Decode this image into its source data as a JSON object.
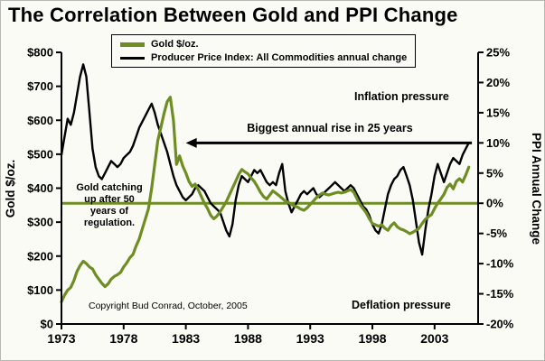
{
  "chart_data": {
    "type": "line",
    "title": "The Correlation Between Gold and PPI Change",
    "x_axis": {
      "range": [
        1973,
        2006.5
      ],
      "ticks": [
        1973,
        1978,
        1983,
        1988,
        1993,
        1998,
        2003
      ],
      "tick_labels": [
        "1973",
        "1978",
        "1983",
        "1988",
        "1993",
        "1998",
        "2003"
      ]
    },
    "left_axis": {
      "label": "Gold $/oz.",
      "range": [
        0,
        800
      ],
      "tick_values": [
        0,
        100,
        200,
        300,
        400,
        500,
        600,
        700,
        800
      ],
      "tick_labels": [
        "$0",
        "$100",
        "$200",
        "$300",
        "$400",
        "$500",
        "$600",
        "$700",
        "$800"
      ]
    },
    "right_axis": {
      "label": "PPI Annual Change",
      "range": [
        -20,
        25
      ],
      "tick_values": [
        -20,
        -15,
        -10,
        -5,
        0,
        5,
        10,
        15,
        20,
        25
      ],
      "tick_labels": [
        "-20%",
        "-15%",
        "-10%",
        "-5%",
        "0%",
        "5%",
        "10%",
        "15%",
        "20%",
        "25%"
      ]
    },
    "zero_line": {
      "axis": "right",
      "value": 0,
      "color": "#6e8e23"
    },
    "grid": false,
    "legend_position": "top-inside",
    "series": [
      {
        "name": "Gold $/oz.",
        "axis": "left",
        "color": "#6e8e23",
        "stroke_width": 3.2,
        "x_start": 1973,
        "x_step": 0.25,
        "values": [
          65,
          85,
          100,
          108,
          128,
          155,
          172,
          185,
          178,
          168,
          162,
          145,
          132,
          120,
          110,
          118,
          132,
          140,
          145,
          152,
          168,
          180,
          195,
          205,
          230,
          250,
          280,
          310,
          340,
          400,
          470,
          540,
          580,
          620,
          655,
          668,
          600,
          470,
          495,
          465,
          445,
          420,
          405,
          412,
          395,
          375,
          355,
          340,
          320,
          310,
          318,
          330,
          345,
          360,
          380,
          400,
          420,
          440,
          455,
          448,
          442,
          430,
          420,
          405,
          388,
          375,
          368,
          380,
          392,
          385,
          378,
          370,
          362,
          358,
          352,
          348,
          344,
          338,
          335,
          342,
          352,
          362,
          372,
          380,
          386,
          382,
          380,
          383,
          386,
          388,
          386,
          388,
          392,
          396,
          388,
          370,
          352,
          340,
          328,
          310,
          296,
          292,
          288,
          292,
          282,
          276,
          290,
          298,
          286,
          280,
          277,
          272,
          266,
          270,
          276,
          282,
          296,
          308,
          316,
          322,
          340,
          356,
          368,
          382,
          402,
          412,
          398,
          420,
          428,
          418,
          438,
          462
        ]
      },
      {
        "name": "Producer Price Index: All Commodities annual change",
        "axis": "right",
        "color": "#000000",
        "stroke_width": 2.4,
        "x_start": 1973,
        "x_step": 0.25,
        "values": [
          8,
          11,
          14,
          13,
          15,
          18,
          21,
          23,
          21,
          15,
          9,
          6,
          4.5,
          4,
          5,
          6,
          7,
          6.5,
          6,
          6.5,
          7.5,
          8,
          8.5,
          9.5,
          11,
          12.5,
          13.5,
          14.5,
          15.5,
          16.5,
          15,
          13,
          11.5,
          10,
          8.5,
          6.5,
          4.5,
          3,
          2,
          1,
          0.5,
          1,
          1.5,
          2.5,
          3,
          2.5,
          2,
          1,
          0,
          -0.5,
          -1,
          -1.5,
          -3,
          -4.5,
          -5.5,
          -3.5,
          0.5,
          3,
          4.5,
          4,
          3.5,
          4.5,
          5.5,
          5,
          5.5,
          4.5,
          3.5,
          3,
          3.5,
          3,
          5,
          6.5,
          2,
          0,
          -1.5,
          -0.5,
          0.5,
          1.5,
          2,
          1.5,
          2,
          2.5,
          1.5,
          1,
          1.5,
          2,
          2.5,
          3,
          3.5,
          3,
          2.5,
          2,
          2.5,
          3,
          2.5,
          1.5,
          0.5,
          -0.5,
          -1,
          -2,
          -3.5,
          -4.5,
          -5,
          -3.5,
          -1,
          1.5,
          3,
          4,
          4.5,
          5.5,
          6,
          4.5,
          3,
          0.5,
          -3,
          -6.5,
          -8.5,
          -4.5,
          -1,
          1.5,
          4.5,
          6.5,
          5,
          3.5,
          5,
          6.5,
          7.5,
          7,
          6.5,
          8,
          9,
          10
        ]
      }
    ],
    "annotations": {
      "inflation": "Inflation pressure",
      "deflation": "Deflation pressure",
      "biggest_rise": "Biggest annual rise in 25 years",
      "gold_note": "Gold catching\nup after 50\nyears of\nregulation.",
      "copyright": "Copyright Bud Conrad, October, 2005",
      "arrow": {
        "from_year": 2006,
        "to_year": 1983,
        "at_ppi_percent": 10
      }
    }
  }
}
